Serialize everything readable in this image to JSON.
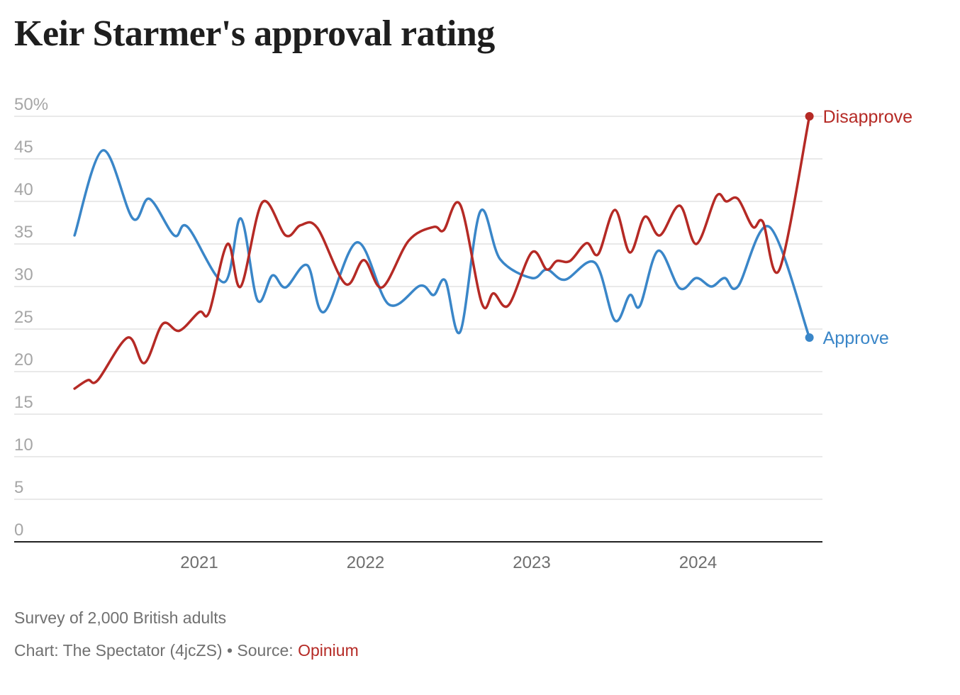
{
  "title": "Keir Starmer's approval rating",
  "footer": {
    "note": "Survey of 2,000 British adults",
    "credit_prefix": "Chart: The Spectator (4jcZS)",
    "separator": "•",
    "source_label": "Source:",
    "source_link": "Opinium"
  },
  "colors": {
    "approve": "#3a86c8",
    "disapprove": "#b52a25",
    "grid": "#e2e2e2",
    "axis": "#222222",
    "link": "#b52a25"
  },
  "chart_data": {
    "type": "line",
    "title": "Keir Starmer's approval rating",
    "xlabel": "",
    "ylabel": "",
    "xlim": [
      2020.25,
      2024.67
    ],
    "ylim": [
      0,
      50
    ],
    "y_ticks": [
      0,
      5,
      10,
      15,
      20,
      25,
      30,
      35,
      40,
      45,
      50
    ],
    "y_tick_labels": [
      "0",
      "5",
      "10",
      "15",
      "20",
      "25",
      "30",
      "35",
      "40",
      "45",
      "50%"
    ],
    "x_ticks": [
      2021,
      2022,
      2023,
      2024
    ],
    "x_tick_labels": [
      "2021",
      "2022",
      "2023",
      "2024"
    ],
    "grid": true,
    "legend": "inline-end-labels",
    "series": [
      {
        "name": "Approve",
        "color": "#3a86c8",
        "end_label": "Approve",
        "points": [
          [
            2020.25,
            36
          ],
          [
            2020.42,
            46
          ],
          [
            2020.6,
            38
          ],
          [
            2020.7,
            40.3
          ],
          [
            2020.85,
            36
          ],
          [
            2020.93,
            37
          ],
          [
            2021.15,
            30.5
          ],
          [
            2021.25,
            38
          ],
          [
            2021.35,
            28.4
          ],
          [
            2021.44,
            31.3
          ],
          [
            2021.52,
            29.9
          ],
          [
            2021.65,
            32.5
          ],
          [
            2021.75,
            27
          ],
          [
            2021.95,
            35.2
          ],
          [
            2022.14,
            27.9
          ],
          [
            2022.33,
            30.1
          ],
          [
            2022.41,
            29
          ],
          [
            2022.48,
            30.7
          ],
          [
            2022.57,
            24.7
          ],
          [
            2022.69,
            38.8
          ],
          [
            2022.81,
            33.2
          ],
          [
            2023.0,
            31
          ],
          [
            2023.09,
            32
          ],
          [
            2023.2,
            30.8
          ],
          [
            2023.38,
            32.8
          ],
          [
            2023.5,
            26
          ],
          [
            2023.59,
            29
          ],
          [
            2023.65,
            27.7
          ],
          [
            2023.76,
            34.2
          ],
          [
            2023.89,
            29.8
          ],
          [
            2023.99,
            31
          ],
          [
            2024.08,
            30
          ],
          [
            2024.16,
            31
          ],
          [
            2024.24,
            30
          ],
          [
            2024.43,
            37
          ],
          [
            2024.67,
            24
          ]
        ]
      },
      {
        "name": "Disapprove",
        "color": "#b52a25",
        "end_label": "Disapprove",
        "points": [
          [
            2020.25,
            18
          ],
          [
            2020.33,
            19
          ],
          [
            2020.39,
            19
          ],
          [
            2020.57,
            24
          ],
          [
            2020.67,
            21
          ],
          [
            2020.78,
            25.6
          ],
          [
            2020.88,
            24.8
          ],
          [
            2021.0,
            27
          ],
          [
            2021.06,
            27
          ],
          [
            2021.17,
            35
          ],
          [
            2021.25,
            30
          ],
          [
            2021.38,
            39.9
          ],
          [
            2021.52,
            36
          ],
          [
            2021.61,
            37.2
          ],
          [
            2021.71,
            36.9
          ],
          [
            2021.88,
            30.3
          ],
          [
            2021.99,
            33.1
          ],
          [
            2022.1,
            29.9
          ],
          [
            2022.26,
            35.4
          ],
          [
            2022.41,
            37
          ],
          [
            2022.47,
            36.6
          ],
          [
            2022.57,
            39.6
          ],
          [
            2022.7,
            28
          ],
          [
            2022.77,
            29.2
          ],
          [
            2022.86,
            27.8
          ],
          [
            2023.0,
            34
          ],
          [
            2023.09,
            32
          ],
          [
            2023.15,
            33
          ],
          [
            2023.23,
            33
          ],
          [
            2023.33,
            35.1
          ],
          [
            2023.4,
            33.8
          ],
          [
            2023.5,
            39
          ],
          [
            2023.59,
            34
          ],
          [
            2023.68,
            38.2
          ],
          [
            2023.77,
            36
          ],
          [
            2023.89,
            39.5
          ],
          [
            2023.99,
            35
          ],
          [
            2024.11,
            40.6
          ],
          [
            2024.17,
            40
          ],
          [
            2024.24,
            40.3
          ],
          [
            2024.33,
            37
          ],
          [
            2024.39,
            37.6
          ],
          [
            2024.49,
            32
          ],
          [
            2024.67,
            50
          ]
        ]
      }
    ]
  }
}
